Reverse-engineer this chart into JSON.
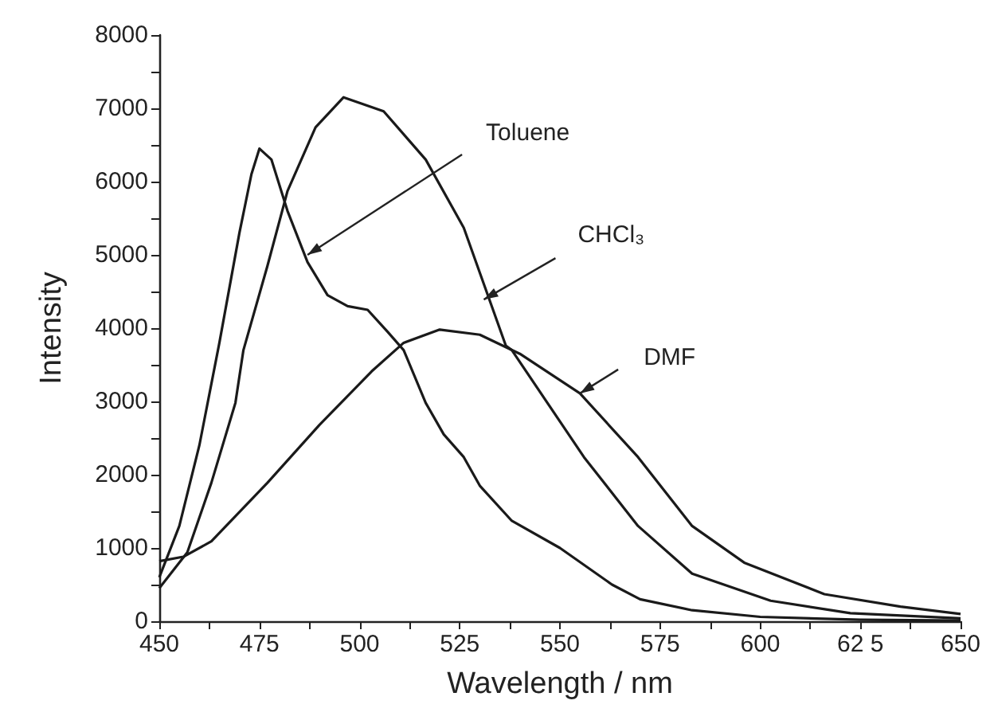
{
  "chart_data": {
    "type": "line",
    "xlabel": "Wavelength / nm",
    "ylabel": "Intensity",
    "xlim": [
      450,
      650
    ],
    "ylim": [
      0,
      8000
    ],
    "xticks": [
      450,
      {
        "value": 462.5,
        "label": null
      },
      475,
      {
        "value": 487.5,
        "label": null
      },
      500,
      {
        "value": 512.5,
        "label": null
      },
      525,
      {
        "value": 537.5,
        "label": null
      },
      550,
      {
        "value": 562.5,
        "label": null
      },
      575,
      {
        "value": 587.5,
        "label": null
      },
      600,
      {
        "value": 612.5,
        "label": null
      },
      {
        "value": 625,
        "label": "62 5"
      },
      {
        "value": 637.5,
        "label": null
      },
      650
    ],
    "yticks": [
      0,
      {
        "value": 500,
        "label": null
      },
      1000,
      {
        "value": 1500,
        "label": null
      },
      2000,
      {
        "value": 2500,
        "label": null
      },
      3000,
      {
        "value": 3500,
        "label": null
      },
      4000,
      {
        "value": 4500,
        "label": null
      },
      5000,
      {
        "value": 5500,
        "label": null
      },
      6000,
      {
        "value": 6500,
        "label": null
      },
      7000,
      {
        "value": 7500,
        "label": null
      },
      8000
    ],
    "grid": false,
    "marker": "none",
    "line_style": "solid",
    "series": [
      {
        "color": "#1a1a1a",
        "x": [
          450,
          455,
          460,
          465,
          470,
          473,
          475,
          478,
          482,
          487,
          492,
          497,
          502,
          507,
          511,
          516.5,
          521,
          526,
          530,
          538,
          550,
          563,
          570,
          583,
          600,
          625,
          650
        ],
        "values": [
          600,
          1300,
          2400,
          3800,
          5300,
          6100,
          6450,
          6300,
          5600,
          4900,
          4450,
          4300,
          4250,
          3950,
          3700,
          2980,
          2550,
          2240,
          1850,
          1370,
          1000,
          500,
          300,
          150,
          60,
          20,
          10
        ]
      },
      {
        "color": "#1a1a1a",
        "x": [
          450,
          457,
          463,
          469,
          471,
          477,
          482,
          489,
          496,
          506,
          516.5,
          526,
          536.5,
          538,
          556,
          569.5,
          583,
          602.6,
          622.5,
          650
        ],
        "values": [
          450,
          940,
          1890,
          2980,
          3700,
          4850,
          5870,
          6740,
          7150,
          6960,
          6300,
          5370,
          3760,
          3700,
          2240,
          1300,
          650,
          280,
          110,
          40
        ]
      },
      {
        "color": "#1a1a1a",
        "x": [
          450,
          456,
          463,
          477,
          490,
          503,
          511,
          520,
          530,
          540,
          555,
          569.5,
          583,
          596,
          616,
          635,
          650
        ],
        "values": [
          820,
          880,
          1090,
          1890,
          2680,
          3410,
          3800,
          3980,
          3910,
          3650,
          3110,
          2240,
          1300,
          800,
          370,
          200,
          100
        ]
      }
    ],
    "annotations": [
      {
        "text": "Toluene",
        "x": 487,
        "y": 5000
      },
      {
        "text": "CHCl₃",
        "x": 531,
        "y": 4390
      },
      {
        "text": "DMF",
        "x": 555,
        "y": 3110
      }
    ]
  }
}
